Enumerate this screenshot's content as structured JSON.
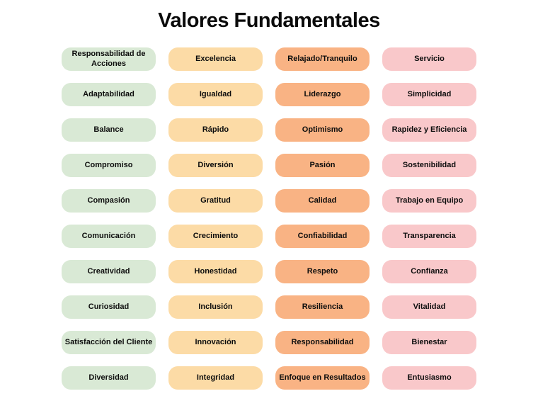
{
  "title": "Valores Fundamentales",
  "columns": [
    {
      "name": "green",
      "color": "#d9e9d5",
      "values": [
        "Responsabilidad de Acciones",
        "Adaptabilidad",
        "Balance",
        "Compromiso",
        "Compasión",
        "Comunicación",
        "Creatividad",
        "Curiosidad",
        "Satisfacción del Cliente",
        "Diversidad"
      ]
    },
    {
      "name": "peach",
      "color": "#fcdba6",
      "values": [
        "Excelencia",
        "Igualdad",
        "Rápido",
        "Diversión",
        "Gratitud",
        "Crecimiento",
        "Honestidad",
        "Inclusión",
        "Innovación",
        "Integridad"
      ]
    },
    {
      "name": "orange",
      "color": "#f9b384",
      "values": [
        "Relajado/Tranquilo",
        "Liderazgo",
        "Optimismo",
        "Pasión",
        "Calidad",
        "Confiabilidad",
        "Respeto",
        "Resiliencia",
        "Responsabilidad",
        "Enfoque en Resultados"
      ]
    },
    {
      "name": "pink",
      "color": "#f9c8ca",
      "values": [
        "Servicio",
        "Simplicidad",
        "Rapidez y Eficiencia",
        "Sostenibilidad",
        "Trabajo en Equipo",
        "Transparencia",
        "Confianza",
        "Vitalidad",
        "Bienestar",
        "Entusiasmo"
      ]
    }
  ]
}
